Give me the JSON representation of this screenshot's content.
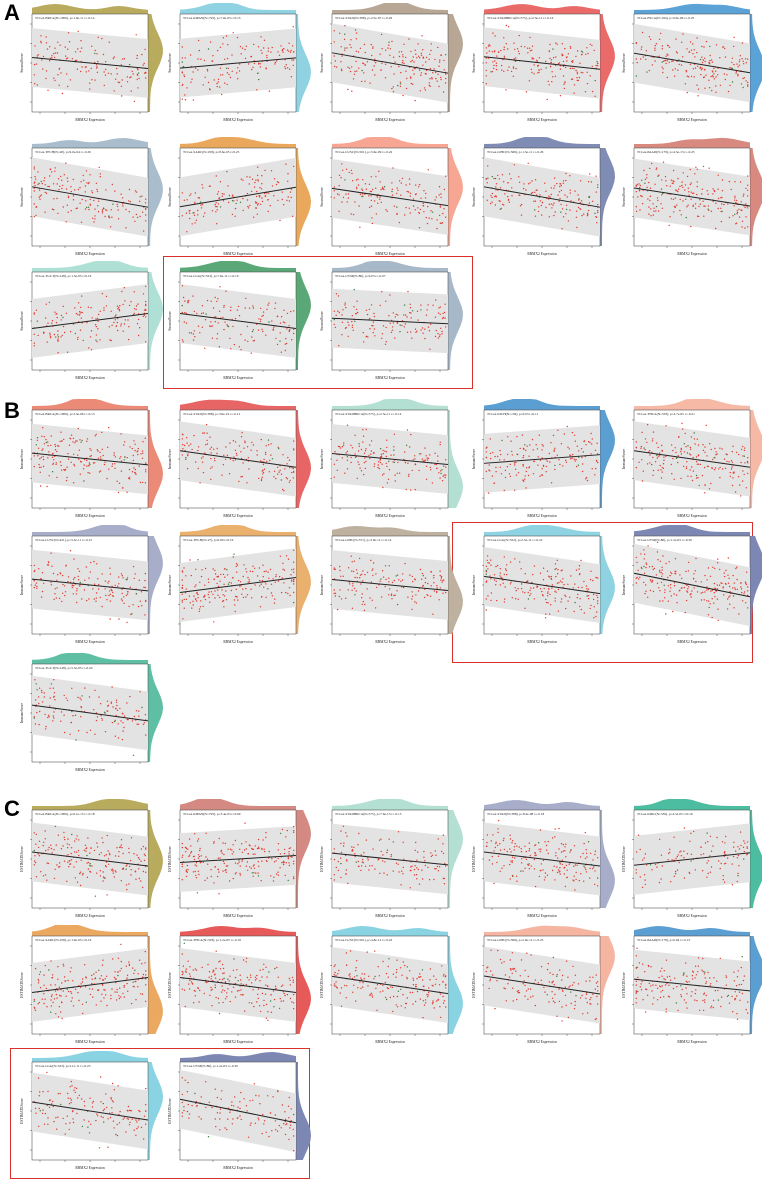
{
  "panels": [
    {
      "label": "A"
    },
    {
      "label": "B"
    },
    {
      "label": "C"
    }
  ],
  "chart_data": [
    {
      "panel": "A",
      "type": "scatter",
      "xlabel": "RBMX2 Expression",
      "ylabel": "StromalScore",
      "highlighted": [
        "TCGA-LGG",
        "TCGA-UVM"
      ],
      "plots": [
        {
          "title": "TCGA-BRCA(N=1006), p=1.0e-11 r=-0.14",
          "r": -0.14,
          "color": "#b8ab5e"
        },
        {
          "title": "TCGA-KIPAN(N=793), p=7.0e-05 r=0.13",
          "r": 0.13,
          "color": "#8fd3e3"
        },
        {
          "title": "TCGA-STAD(N=388), p=2.5e-07 r=-0.26",
          "r": -0.26,
          "color": "#b9a796"
        },
        {
          "title": "TCGA-STADBRCA(N=575), p=2.3e-11 r=-0.16",
          "r": -0.16,
          "color": "#ea6a6a"
        },
        {
          "title": "TCGA-ESCA(N=184), p=9.6e-06 r=-0.25",
          "r": -0.25,
          "color": "#5ba2d6"
        },
        {
          "title": "TCGA-TECH(N=20), p=9.0e-04 r=-0.26",
          "r": -0.26,
          "color": "#a9bdcd"
        },
        {
          "title": "TCGA-SARC(N=258), p=8.6e-05 r=0.25",
          "r": 0.25,
          "color": "#e9a85b"
        },
        {
          "title": "TCGA-LUSC(N=501), p=3.6e-09 r=-0.22",
          "r": -0.22,
          "color": "#f6a693"
        },
        {
          "title": "TCGA-LIHC(N=369), p=1.5e-11 r=-0.26",
          "r": -0.26,
          "color": "#7f8cb3"
        },
        {
          "title": "TCGA-PAAD(N=179), p=4.5e-13 r=-0.23",
          "r": -0.23,
          "color": "#d98a80"
        },
        {
          "title": "TCGA-TGCT(N=148), p=1.5e-03 r=0.19",
          "r": 0.19,
          "color": "#aee0d5"
        },
        {
          "title": "TCGA-LGG(N=523), p=7.9e-11 r=-0.19",
          "r": -0.19,
          "color": "#5aa877"
        },
        {
          "title": "TCGA-UVM(N=80), p=0.03 r=-0.07",
          "r": -0.07,
          "color": "#a7b9c9"
        }
      ]
    },
    {
      "panel": "B",
      "type": "scatter",
      "xlabel": "RBMX2 Expression",
      "ylabel": "ImmuneScore",
      "highlighted": [
        "TCGA-LGG",
        "TCGA-UVM"
      ],
      "plots": [
        {
          "title": "TCGA-BRCA(N=1006), p=3.3e-06 r=-0.15",
          "r": -0.15,
          "color": "#ec8a78"
        },
        {
          "title": "TCGA-STAD(N=388), p=3.6e-16 r=-0.21",
          "r": -0.21,
          "color": "#e86565"
        },
        {
          "title": "TCGA-STADBRCA(N=575), p=2.5e-11 r=-0.14",
          "r": -0.14,
          "color": "#b4dfd3"
        },
        {
          "title": "TCGA-KICH(N=159), p=0.03 r=0.11",
          "r": 0.11,
          "color": "#5b9fd2"
        },
        {
          "title": "TCGA-THCA(N=503), p=4.7e-05 r=-0.21",
          "r": -0.21,
          "color": "#f6b9a6"
        },
        {
          "title": "TCGA-LUSC(N=421), p=3.3e-11 r=-0.15",
          "r": -0.15,
          "color": "#a8aec9"
        },
        {
          "title": "TCGA-TECH(N=27), p=0.09 r=0.19",
          "r": 0.19,
          "color": "#eab06e"
        },
        {
          "title": "TCGA-LIHC(N=371), p=3.9e-11 r=-0.14",
          "r": -0.14,
          "color": "#bfb19f"
        },
        {
          "title": "TCGA-LGG(N=522), p=2.5e-11 r=-0.22",
          "r": -0.22,
          "color": "#8fd3e3"
        },
        {
          "title": "TCGA-UVM(N=80), p=1.2e-03 r=-0.30",
          "r": -0.3,
          "color": "#7d87b3"
        },
        {
          "title": "TCGA-TGCT(N=148), p=5.3e-03 r=-0.20",
          "r": -0.2,
          "color": "#5fbfa5"
        }
      ]
    },
    {
      "panel": "C",
      "type": "scatter",
      "xlabel": "RBMX2 Expression",
      "ylabel": "ESTIMATEScore",
      "highlighted": [
        "TCGA-LGG",
        "TCGA-UVM"
      ],
      "plots": [
        {
          "title": "TCGA-BRCA(N=1006), p=6.1e-15 r=-0.18",
          "r": -0.18,
          "color": "#b8ab5e"
        },
        {
          "title": "TCGA-KIPAN(N=793), p=3.4e-03 r=0.09",
          "r": 0.09,
          "color": "#d48a82"
        },
        {
          "title": "TCGA-STADBRCA(N=575), p=7.6e-13 r=-0.15",
          "r": -0.15,
          "color": "#b4dfd3"
        },
        {
          "title": "TCGA-STAD(N=388), p=8.4e-08 r=-0.18",
          "r": -0.18,
          "color": "#a8aec9"
        },
        {
          "title": "TCGA-KIRC(N=530), p=4.5e-05 r=0.16",
          "r": 0.16,
          "color": "#4dbda2"
        },
        {
          "title": "TCGA-SARC(N=258), p=1.9e-03 r=0.19",
          "r": 0.19,
          "color": "#eba861"
        },
        {
          "title": "TCGA-THCA(N=503), p=1.2e-05 r=-0.19",
          "r": -0.19,
          "color": "#e65a5a"
        },
        {
          "title": "TCGA-LUSC(N=501), p=4.8e-12 r=-0.22",
          "r": -0.22,
          "color": "#8ad3e3"
        },
        {
          "title": "TCGA-LIHC(N=369), p=2.0e-11 r=-0.23",
          "r": -0.23,
          "color": "#f6b5a0"
        },
        {
          "title": "TCGA-PAAD(N=179), p=0.04 r=-0.15",
          "r": -0.15,
          "color": "#5b9fd2"
        },
        {
          "title": "TCGA-LGG(N=523), p=2.1e-11 r=-0.23",
          "r": -0.23,
          "color": "#8ad3e3"
        },
        {
          "title": "TCGA-UVM(N=80), p=1.2e-03 r=-0.30",
          "r": -0.3,
          "color": "#7d87b3"
        }
      ]
    }
  ]
}
